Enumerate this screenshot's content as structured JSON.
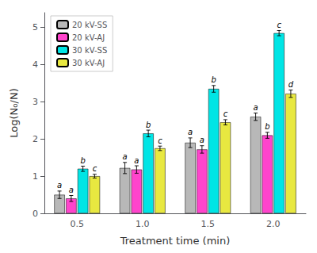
{
  "chart_data": {
    "type": "bar",
    "categories": [
      "0.5",
      "1.0",
      "1.5",
      "2.0"
    ],
    "series": [
      {
        "name": "20 kV-SS",
        "color": "#b8b8b8",
        "values": [
          0.5,
          1.22,
          1.9,
          2.6
        ],
        "errors": [
          0.1,
          0.15,
          0.13,
          0.1
        ],
        "letters": [
          "a",
          "a",
          "a",
          "a"
        ]
      },
      {
        "name": "20 kV-AJ",
        "color": "#ff44cc",
        "values": [
          0.4,
          1.18,
          1.72,
          2.1
        ],
        "errors": [
          0.08,
          0.1,
          0.1,
          0.08
        ],
        "letters": [
          "a",
          "a",
          "a",
          "b"
        ]
      },
      {
        "name": "30 kV-SS",
        "color": "#00e5e5",
        "values": [
          1.2,
          2.15,
          3.35,
          4.85
        ],
        "errors": [
          0.07,
          0.09,
          0.09,
          0.07
        ],
        "letters": [
          "b",
          "b",
          "b",
          "c"
        ]
      },
      {
        "name": "30 kV-AJ",
        "color": "#e8e840",
        "values": [
          1.0,
          1.75,
          2.45,
          3.22
        ],
        "errors": [
          0.05,
          0.06,
          0.07,
          0.1
        ],
        "letters": [
          "c",
          "c",
          "c",
          "d"
        ]
      }
    ],
    "xlabel": "Treatment time (min)",
    "ylabel": "Log(N₀/N)",
    "ylim": [
      0,
      5.4
    ],
    "yticks": [
      0,
      1,
      2,
      3,
      4,
      5
    ],
    "grid": false,
    "legend": "upper left"
  }
}
